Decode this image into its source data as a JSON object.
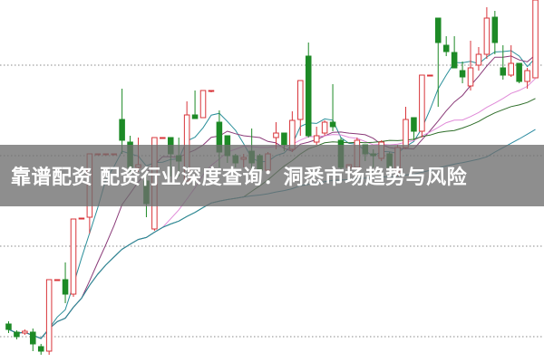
{
  "title": "靠谱配资 配资行业深度查询：洞悉市场趋势与风险",
  "chart_data": {
    "type": "candlestick",
    "ylim": [
      0,
      100
    ],
    "grid": true,
    "gridlines": [
      82,
      57,
      32,
      7
    ],
    "colors": {
      "up": "#d8343a",
      "down": "#1d8a26",
      "grid": "#888888"
    },
    "candles": [
      [
        10.5,
        11.25,
        8,
        9
      ],
      [
        8.25,
        8.75,
        6.25,
        7
      ],
      [
        8,
        9,
        7.5,
        8.5
      ],
      [
        8.25,
        9.25,
        3,
        5
      ],
      [
        4.25,
        5,
        2,
        3
      ],
      [
        3,
        22.75,
        2,
        22.75
      ],
      [
        22.5,
        22.75,
        22.5,
        22.75
      ],
      [
        22.75,
        27.5,
        16.25,
        18.75
      ],
      [
        18.75,
        39.5,
        18,
        39.5
      ],
      [
        39.5,
        39.75,
        39.5,
        39.75
      ],
      [
        40,
        57.5,
        35.5,
        57.5
      ],
      [
        57.25,
        57.5,
        57.25,
        57.5
      ],
      [
        57.25,
        57.5,
        57.25,
        57.5
      ],
      [
        57.25,
        57.5,
        57.25,
        57.5
      ],
      [
        67,
        75.5,
        57.5,
        61.25
      ],
      [
        60.75,
        62.5,
        52.5,
        53.75
      ],
      [
        53.75,
        62,
        52.5,
        54.5
      ],
      [
        50,
        51.25,
        40,
        43.75
      ],
      [
        36.75,
        62,
        36.25,
        62
      ],
      [
        61.75,
        62,
        61.75,
        62
      ],
      [
        62,
        62,
        51.25,
        57.5
      ],
      [
        57,
        62,
        51.25,
        55.5
      ],
      [
        50,
        72,
        50,
        68.25
      ],
      [
        68.25,
        75,
        67.25,
        67.25
      ],
      [
        67.5,
        75,
        67.5,
        75
      ],
      [
        74.75,
        75,
        74.5,
        75
      ],
      [
        66.25,
        69.5,
        53.75,
        58
      ],
      [
        62.5,
        62.5,
        55,
        57
      ],
      [
        57,
        57.5,
        53.75,
        55
      ],
      [
        56,
        57.5,
        53.75,
        56.5
      ],
      [
        58.25,
        64.5,
        52.5,
        55
      ],
      [
        57,
        57.5,
        52,
        53
      ],
      [
        53,
        58,
        52,
        57.5
      ],
      [
        62,
        66.25,
        58.75,
        63.25
      ],
      [
        63.25,
        63.25,
        58.25,
        60
      ],
      [
        58.75,
        69.25,
        58,
        66.75
      ],
      [
        67,
        77.75,
        62.5,
        77.75
      ],
      [
        84.5,
        88.25,
        62,
        62.5
      ],
      [
        60.75,
        65,
        60,
        62.5
      ],
      [
        63.25,
        66.75,
        62.5,
        66.25
      ],
      [
        66.25,
        76.75,
        63.75,
        65
      ],
      [
        61.25,
        62,
        53,
        53.75
      ],
      [
        53.75,
        54.5,
        53,
        54.5
      ],
      [
        53.75,
        62,
        53.25,
        61.25
      ],
      [
        60,
        60,
        55.5,
        57.5
      ],
      [
        57.5,
        58.75,
        53.75,
        57
      ],
      [
        56.25,
        61.25,
        55.5,
        60.75
      ],
      [
        57.5,
        58,
        53.75,
        53.75
      ],
      [
        52.5,
        60,
        51.25,
        59.25
      ],
      [
        59.25,
        70.5,
        58.75,
        67
      ],
      [
        67.5,
        67.5,
        61.25,
        63.75
      ],
      [
        63.75,
        79.25,
        62,
        79.25
      ],
      [
        79,
        79.25,
        79,
        79.25
      ],
      [
        95,
        95,
        70.5,
        88.25
      ],
      [
        87.5,
        90,
        84.5,
        85.75
      ],
      [
        85.5,
        90,
        81.25,
        81.25
      ],
      [
        80.5,
        83,
        77,
        78.75
      ],
      [
        76.25,
        88.75,
        75,
        81.25
      ],
      [
        82,
        87,
        80.5,
        85
      ],
      [
        85,
        98,
        83.75,
        95
      ],
      [
        95.25,
        97,
        85,
        88.25
      ],
      [
        81.25,
        87.5,
        78,
        79.25
      ],
      [
        79.25,
        87.5,
        78.75,
        82.5
      ],
      [
        82.5,
        82.5,
        77,
        77.5
      ],
      [
        77.5,
        81.25,
        75.5,
        80.5
      ],
      [
        78.5,
        100,
        78.5,
        100
      ]
    ],
    "moving_averages": [
      {
        "period": 5,
        "color": "#2a8f9a"
      },
      {
        "period": 10,
        "color": "#8a3a78"
      },
      {
        "period": 20,
        "color": "#e08ad8"
      },
      {
        "period": 30,
        "color": "#2f6e2a"
      },
      {
        "period": 60,
        "color": "#2b8aa0"
      }
    ]
  }
}
